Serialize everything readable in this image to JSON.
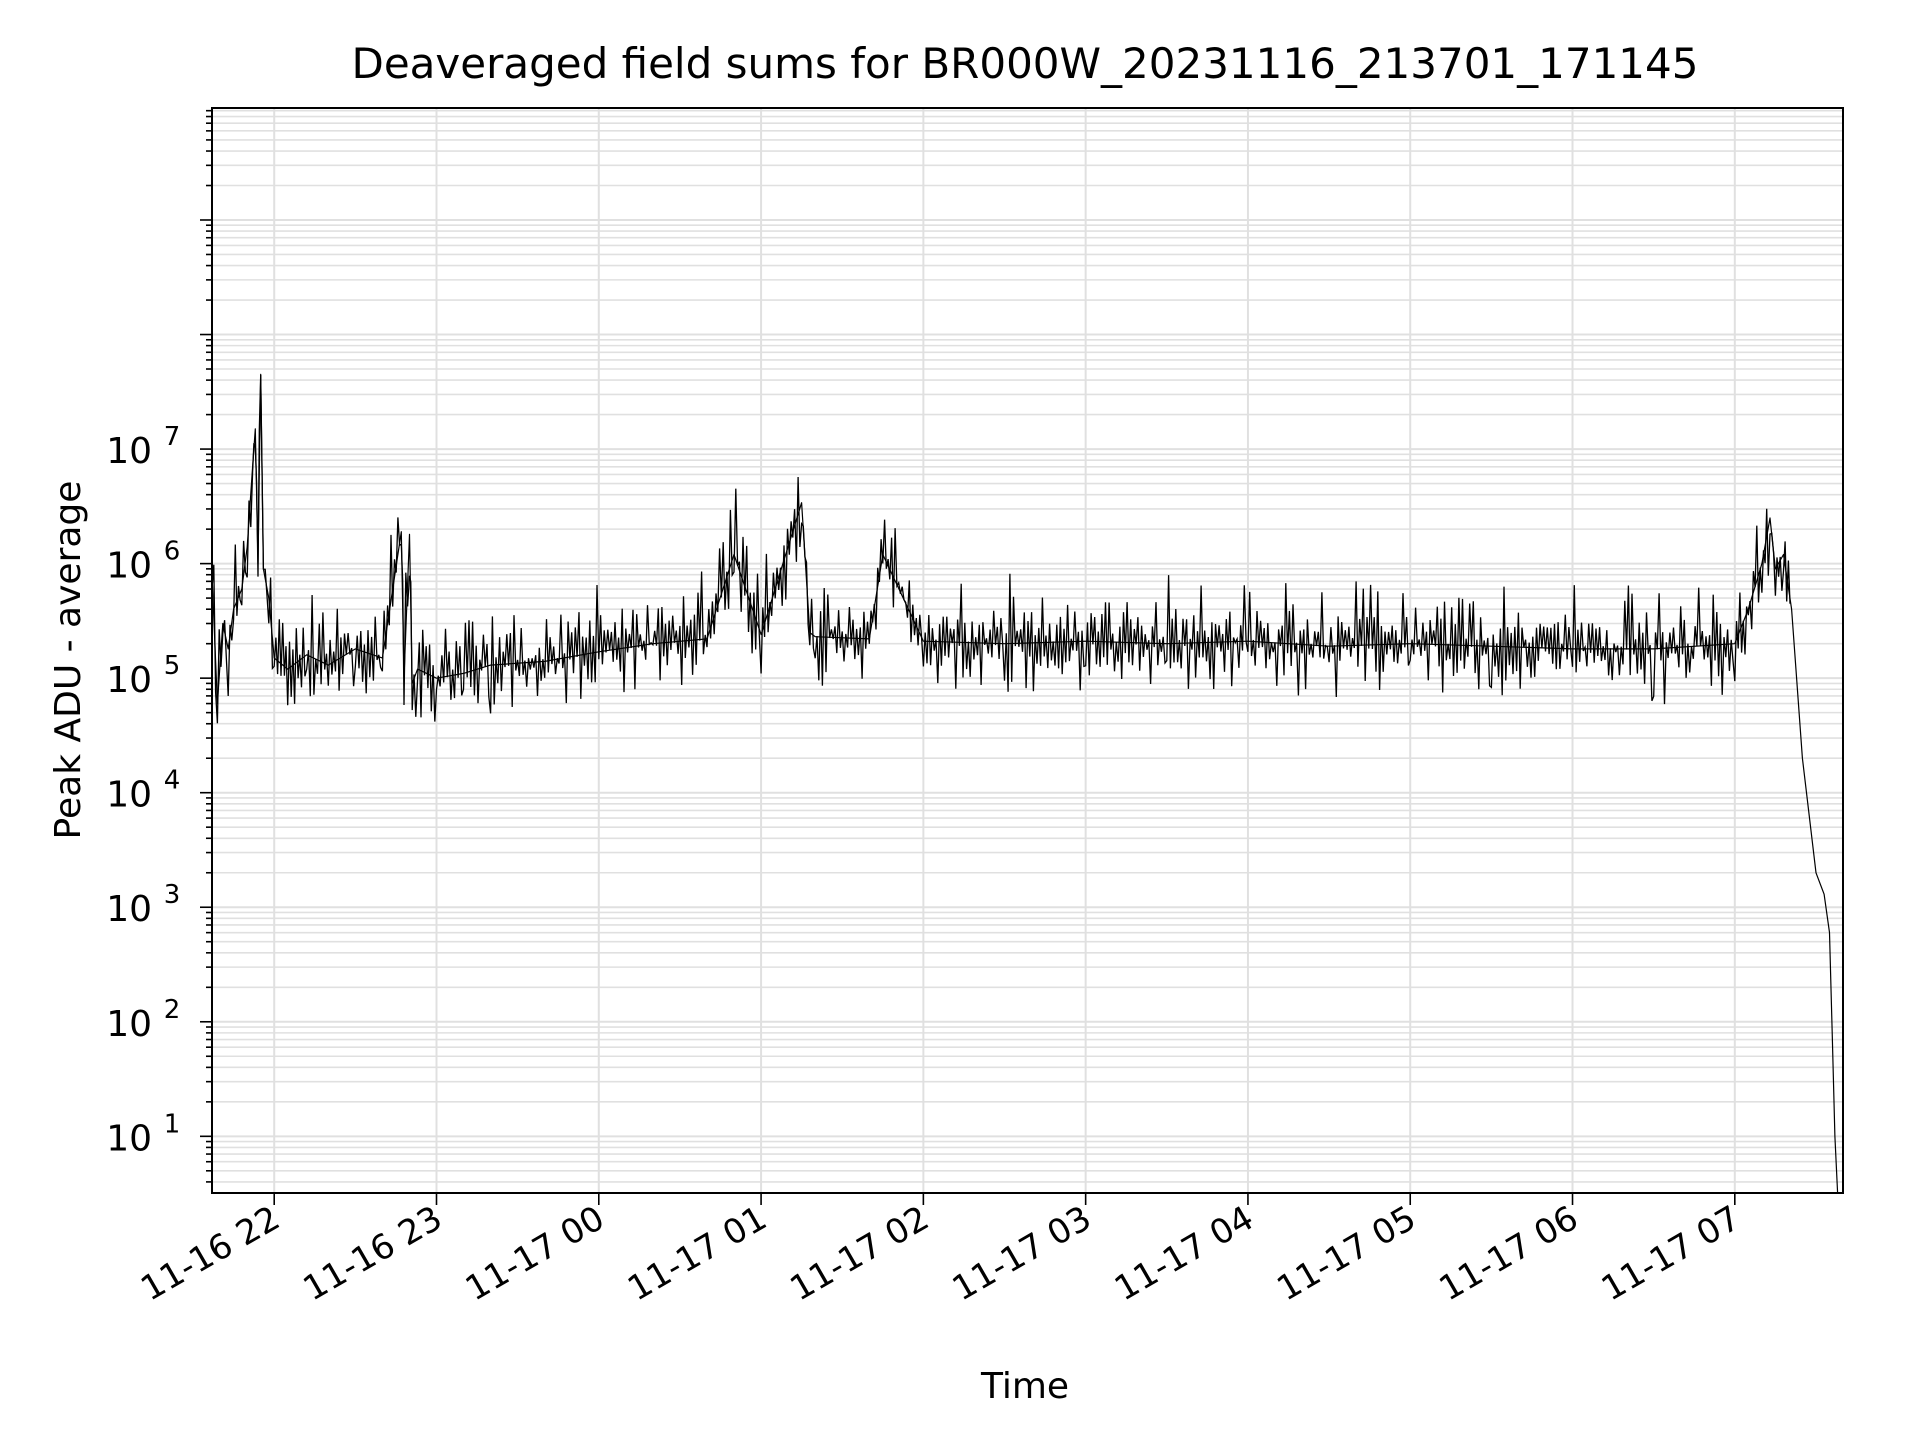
{
  "chart_data": {
    "type": "line",
    "title": "Deaveraged field sums for BR000W_20231116_213701_171145",
    "xlabel": "Time",
    "ylabel": "Peak ADU - average",
    "yscale": "log",
    "ylim": [
      3.2,
      9500000000
    ],
    "xlim": [
      "2023-11-16 21:37:00",
      "2023-11-17 07:40:00"
    ],
    "grid": true,
    "legend": "none",
    "line_color": "#000000",
    "grid_color": "#e0e0e0",
    "x_ticks": [
      {
        "t": "2023-11-16 22:00",
        "label": "11-16 22"
      },
      {
        "t": "2023-11-16 23:00",
        "label": "11-16 23"
      },
      {
        "t": "2023-11-17 00:00",
        "label": "11-17 00"
      },
      {
        "t": "2023-11-17 01:00",
        "label": "11-17 01"
      },
      {
        "t": "2023-11-17 02:00",
        "label": "11-17 02"
      },
      {
        "t": "2023-11-17 03:00",
        "label": "11-17 03"
      },
      {
        "t": "2023-11-17 04:00",
        "label": "11-17 04"
      },
      {
        "t": "2023-11-17 05:00",
        "label": "11-17 05"
      },
      {
        "t": "2023-11-17 06:00",
        "label": "11-17 06"
      },
      {
        "t": "2023-11-17 07:00",
        "label": "11-17 07"
      }
    ],
    "y_ticks": [
      {
        "value": 10,
        "base": "10",
        "exp": "1"
      },
      {
        "value": 100,
        "base": "10",
        "exp": "2"
      },
      {
        "value": 1000,
        "base": "10",
        "exp": "3"
      },
      {
        "value": 10000,
        "base": "10",
        "exp": "4"
      },
      {
        "value": 100000,
        "base": "10",
        "exp": "5"
      },
      {
        "value": 1000000,
        "base": "10",
        "exp": "6"
      },
      {
        "value": 10000000,
        "base": "10",
        "exp": "7"
      }
    ],
    "series": [
      {
        "x": [
          "2023-11-16 21:37",
          "2023-11-16 21:39",
          "2023-11-16 21:41",
          "2023-11-16 21:43",
          "2023-11-16 21:45",
          "2023-11-16 21:48",
          "2023-11-16 21:50",
          "2023-11-16 21:52",
          "2023-11-16 21:53",
          "2023-11-16 21:54",
          "2023-11-16 21:55",
          "2023-11-16 21:56",
          "2023-11-16 21:58",
          "2023-11-16 22:00",
          "2023-11-16 22:05",
          "2023-11-16 22:12",
          "2023-11-16 22:20",
          "2023-11-16 22:30",
          "2023-11-16 22:40",
          "2023-11-16 22:47",
          "2023-11-16 22:48",
          "2023-11-16 22:50",
          "2023-11-16 22:51",
          "2023-11-16 22:53",
          "2023-11-16 23:00",
          "2023-11-16 23:10",
          "2023-11-16 23:20",
          "2023-11-16 23:40",
          "2023-11-17 00:00",
          "2023-11-17 00:20",
          "2023-11-17 00:40",
          "2023-11-17 00:50",
          "2023-11-17 01:00",
          "2023-11-17 01:15",
          "2023-11-17 01:18",
          "2023-11-17 01:20",
          "2023-11-17 01:40",
          "2023-11-17 01:45",
          "2023-11-17 02:00",
          "2023-11-17 02:30",
          "2023-11-17 03:00",
          "2023-11-17 03:30",
          "2023-11-17 04:00",
          "2023-11-17 04:30",
          "2023-11-17 05:00",
          "2023-11-17 05:30",
          "2023-11-17 06:00",
          "2023-11-17 06:30",
          "2023-11-17 07:00",
          "2023-11-17 07:05",
          "2023-11-17 07:10",
          "2023-11-17 07:13",
          "2023-11-17 07:15",
          "2023-11-17 07:18",
          "2023-11-17 07:21",
          "2023-11-17 07:25",
          "2023-11-17 07:30",
          "2023-11-17 07:33",
          "2023-11-17 07:35",
          "2023-11-17 07:36",
          "2023-11-17 07:37",
          "2023-11-17 07:38"
        ],
        "y": [
          800000,
          60000,
          300000,
          180000,
          400000,
          600000,
          1400000,
          7000000,
          15000000,
          1000000,
          45000000,
          900000,
          500000,
          150000,
          120000,
          160000,
          130000,
          180000,
          150000,
          1900000,
          100000,
          1800000,
          90000,
          120000,
          100000,
          110000,
          130000,
          140000,
          170000,
          200000,
          220000,
          1200000,
          240000,
          3400000,
          250000,
          230000,
          220000,
          1200000,
          210000,
          200000,
          210000,
          200000,
          210000,
          190000,
          200000,
          190000,
          180000,
          180000,
          200000,
          400000,
          1000000,
          2500000,
          900000,
          1200000,
          400000,
          20000,
          2000,
          1300,
          600,
          80,
          10,
          3.2
        ]
      }
    ]
  }
}
